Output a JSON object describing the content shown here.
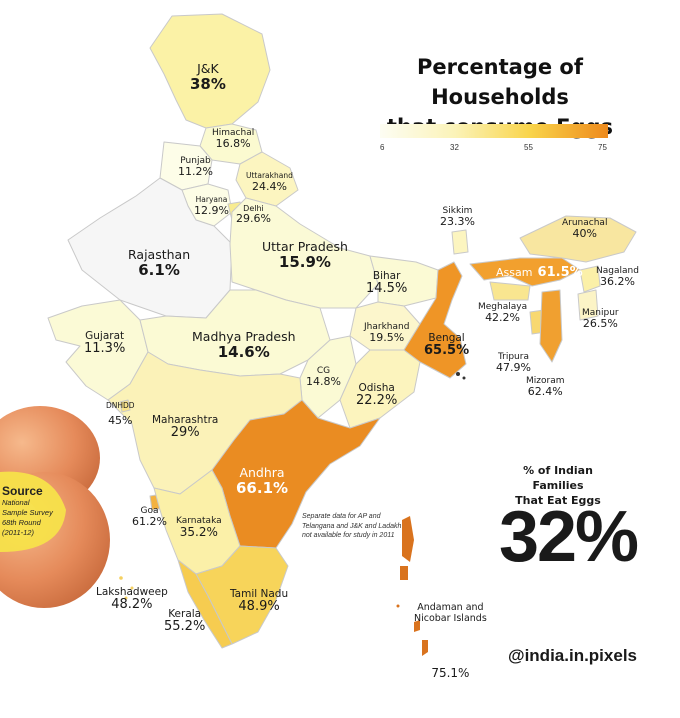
{
  "title_line1": "Percentage of Households",
  "title_line2": "that consume Eggs",
  "legend": {
    "ticks": [
      "6",
      "32",
      "55",
      "75"
    ],
    "colors": [
      "#fdfdf3",
      "#fbf3b8",
      "#f9d44a",
      "#ee8a1c"
    ]
  },
  "regions": [
    {
      "id": "jk",
      "name": "J&K",
      "value": "38%"
    },
    {
      "id": "himachal",
      "name": "Himachal",
      "value": "16.8%"
    },
    {
      "id": "punjab",
      "name": "Punjab",
      "value": "11.2%"
    },
    {
      "id": "uttarakhand",
      "name": "Uttarakhand",
      "value": "24.4%"
    },
    {
      "id": "haryana",
      "name": "Haryana",
      "value": "12.9%"
    },
    {
      "id": "delhi",
      "name": "Delhi",
      "value": "29.6%"
    },
    {
      "id": "rajasthan",
      "name": "Rajasthan",
      "value": "6.1%"
    },
    {
      "id": "up",
      "name": "Uttar Pradesh",
      "value": "15.9%"
    },
    {
      "id": "sikkim",
      "name": "Sikkim",
      "value": "23.3%"
    },
    {
      "id": "arunachal",
      "name": "Arunachal",
      "value": "40%"
    },
    {
      "id": "assam",
      "name": "Assam",
      "value": "61.5%"
    },
    {
      "id": "nagaland",
      "name": "Nagaland",
      "value": "36.2%"
    },
    {
      "id": "bihar",
      "name": "Bihar",
      "value": "14.5%"
    },
    {
      "id": "meghalaya",
      "name": "Meghalaya",
      "value": "42.2%"
    },
    {
      "id": "manipur",
      "name": "Manipur",
      "value": "26.5%"
    },
    {
      "id": "gujarat",
      "name": "Gujarat",
      "value": "11.3%"
    },
    {
      "id": "mp",
      "name": "Madhya Pradesh",
      "value": "14.6%"
    },
    {
      "id": "jharkhand",
      "name": "Jharkhand",
      "value": "19.5%"
    },
    {
      "id": "bengal",
      "name": "Bengal",
      "value": "65.5%"
    },
    {
      "id": "tripura",
      "name": "Tripura",
      "value": "47.9%"
    },
    {
      "id": "mizoram",
      "name": "Mizoram",
      "value": "62.4%"
    },
    {
      "id": "cg",
      "name": "CG",
      "value": "14.8%"
    },
    {
      "id": "odisha",
      "name": "Odisha",
      "value": "22.2%"
    },
    {
      "id": "dnhdd",
      "name": "DNHDD",
      "value": "45%"
    },
    {
      "id": "maharashtra",
      "name": "Maharashtra",
      "value": "29%"
    },
    {
      "id": "andhra",
      "name": "Andhra",
      "value": "66.1%"
    },
    {
      "id": "goa",
      "name": "Goa",
      "value": "61.2%"
    },
    {
      "id": "karnataka",
      "name": "Karnataka",
      "value": "35.2%"
    },
    {
      "id": "lakshadweep",
      "name": "Lakshadweep",
      "value": "48.2%"
    },
    {
      "id": "tamilnadu",
      "name": "Tamil Nadu",
      "value": "48.9%"
    },
    {
      "id": "kerala",
      "name": "Kerala",
      "value": "55.2%"
    },
    {
      "id": "andaman",
      "name": "Andaman and\nNicobar Islands",
      "value": "75.1%"
    }
  ],
  "note": "Separate data for AP and Telangana and J&K and Ladakh not available for study in 2011",
  "stat": {
    "caption_line1": "% of Indian Families",
    "caption_line2": "That Eat Eggs",
    "value": "32%"
  },
  "source": {
    "heading": "Source",
    "line1": "National",
    "line2": "Sample Survey",
    "line3": "68th Round",
    "line4": "(2011-12)"
  },
  "handle": "@india.in.pixels"
}
